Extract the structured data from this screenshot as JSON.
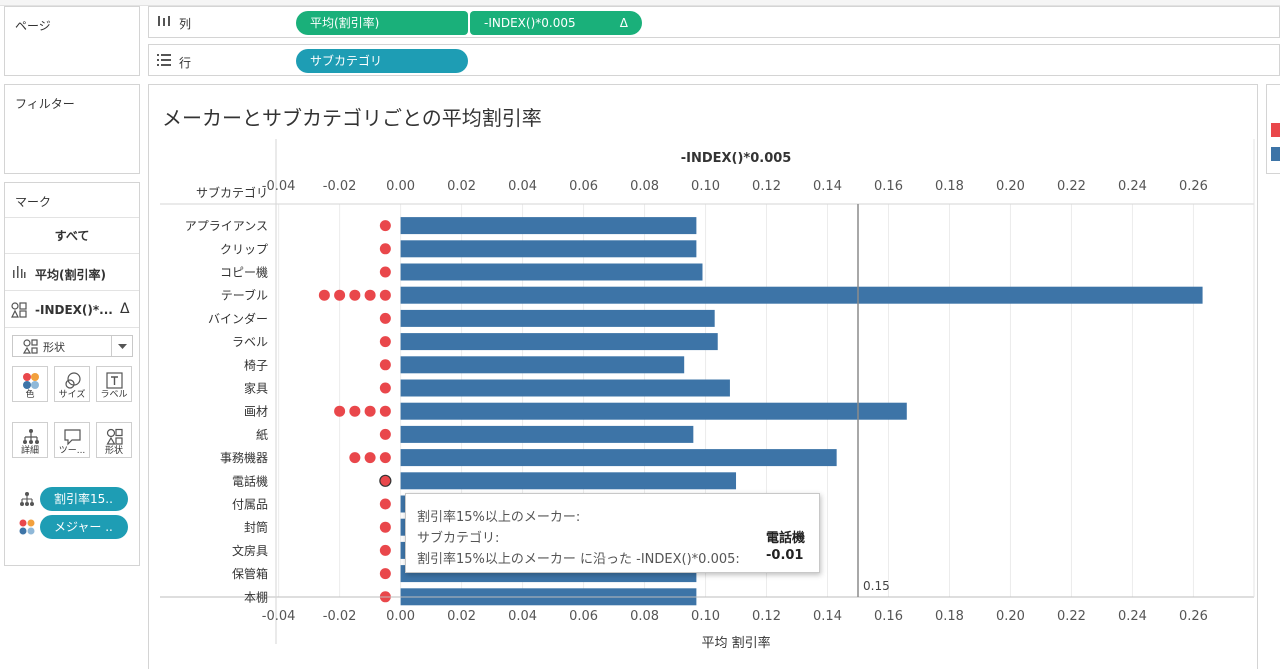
{
  "shelves": {
    "page_label": "ページ",
    "columns_label": "列",
    "rows_label": "行",
    "column_pills": [
      "平均(割引率)",
      "-INDEX()*0.005"
    ],
    "row_pills": [
      "サブカテゴリ"
    ],
    "delta_glyph": "Δ"
  },
  "filters": {
    "title": "フィルター"
  },
  "marks": {
    "title": "マーク",
    "all_label": "すべて",
    "layer1_label": "平均(割引率)",
    "layer2_label": "-INDEX()*...",
    "mark_type": "形状",
    "buttons": [
      "色",
      "サイズ",
      "ラベル",
      "詳細",
      "ツー...",
      "形状"
    ],
    "field_pills": [
      "割引率15..",
      "メジャー .."
    ]
  },
  "colors": {
    "bar": "#3d74a7",
    "dot": "#e9474b",
    "pill_green": "#1ab07a",
    "pill_teal": "#1e9db4"
  },
  "chart_data": {
    "type": "bar",
    "title": "メーカーとサブカテゴリごとの平均割引率",
    "row_header": "サブカテゴリ",
    "top_axis_title": "-INDEX()*0.005",
    "bottom_axis_title": "平均 割引率",
    "tick_labels": [
      "-0.04",
      "-0.02",
      "0.00",
      "0.02",
      "0.04",
      "0.06",
      "0.08",
      "0.10",
      "0.12",
      "0.14",
      "0.16",
      "0.18",
      "0.20",
      "0.22",
      "0.24",
      "0.26"
    ],
    "xlim": [
      -0.04,
      0.26
    ],
    "reference_line": {
      "value": 0.15,
      "label": "0.15"
    },
    "categories": [
      "アプライアンス",
      "クリップ",
      "コピー機",
      "テーブル",
      "バインダー",
      "ラベル",
      "椅子",
      "家具",
      "画材",
      "紙",
      "事務機器",
      "電話機",
      "付属品",
      "封筒",
      "文房具",
      "保管箱",
      "本棚"
    ],
    "values": [
      0.097,
      0.097,
      0.099,
      0.263,
      0.103,
      0.104,
      0.093,
      0.108,
      0.166,
      0.096,
      0.143,
      0.11,
      0.1,
      0.095,
      0.096,
      0.097,
      0.097
    ],
    "dot_counts": [
      1,
      1,
      1,
      5,
      1,
      1,
      1,
      1,
      4,
      1,
      3,
      1,
      1,
      1,
      1,
      1,
      1
    ],
    "selected_row": 11,
    "grid": true
  },
  "tooltip": {
    "line1": "割引率15%以上のメーカー:",
    "line2_label": "サブカテゴリ:",
    "line2_value": "電話機",
    "line3_label": "割引率15%以上のメーカー に沿った -INDEX()*0.005:",
    "line3_value": "-0.01"
  }
}
